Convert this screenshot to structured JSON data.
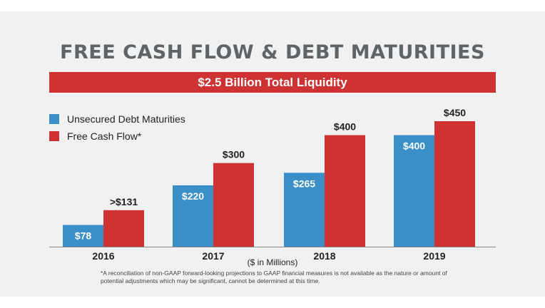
{
  "header": {
    "title": "FREE CASH FLOW & DEBT MATURITIES",
    "banner": "$2.5 Billion Total Liquidity"
  },
  "footnote": "*A reconciliation of non-GAAP forward-looking projections to GAAP financial measures is not available as the nature or amount of potential adjustments which may be significant, cannot be determined at this time.",
  "colors": {
    "background": "#f1f1f2",
    "title": "#5f6466",
    "banner": "#cf3232",
    "series_blue": "#3b8fc9",
    "series_red": "#cf3232",
    "axis": "#888888",
    "text": "#222222"
  },
  "chart_data": {
    "type": "bar",
    "categories": [
      "2016",
      "2017",
      "2018",
      "2019"
    ],
    "series": [
      {
        "name": "Unsecured Debt Maturities",
        "color": "#3b8fc9",
        "values": [
          78,
          220,
          265,
          400
        ],
        "labels": [
          "$78",
          "$220",
          "$265",
          "$400"
        ],
        "label_position": "inside"
      },
      {
        "name": "Free Cash Flow*",
        "color": "#cf3232",
        "values": [
          131,
          300,
          400,
          450
        ],
        "labels": [
          ">$131",
          "$300",
          "$400",
          "$450"
        ],
        "label_position": "above"
      }
    ],
    "xlabel": "($ in Millions)",
    "ylabel": "",
    "ylim": [
      0,
      450
    ],
    "grid": false,
    "legend": "top-left"
  }
}
